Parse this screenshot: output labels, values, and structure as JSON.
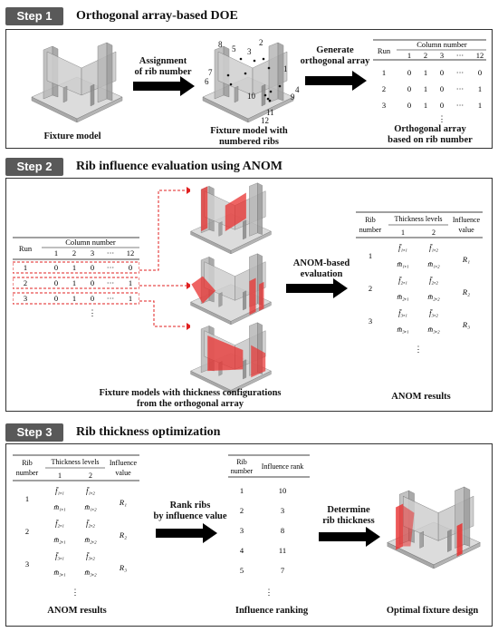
{
  "step1": {
    "badge": "Step 1",
    "title": "Orthogonal array-based DOE",
    "fixture_label": "Fixture model",
    "arrow1_label": [
      "Assignment",
      "of rib number"
    ],
    "numbered_label": [
      "Fixture model with",
      "numbered ribs"
    ],
    "rib_numbers": [
      "1",
      "2",
      "3",
      "4",
      "5",
      "6",
      "7",
      "8",
      "9",
      "10",
      "11",
      "12"
    ],
    "arrow2_label": [
      "Generate",
      "orthogonal array"
    ],
    "oa_caption": [
      "Orthogonal array",
      "based on rib number"
    ],
    "oa_table": {
      "run_header": "Run",
      "column_header": "Column number",
      "columns": [
        "1",
        "2",
        "3",
        "···",
        "12"
      ],
      "rows": [
        {
          "run": "1",
          "cells": [
            "0",
            "1",
            "0",
            "···",
            "0"
          ]
        },
        {
          "run": "2",
          "cells": [
            "0",
            "1",
            "0",
            "···",
            "1"
          ]
        },
        {
          "run": "3",
          "cells": [
            "0",
            "1",
            "0",
            "···",
            "1"
          ]
        }
      ],
      "more": "⋮"
    }
  },
  "step2": {
    "badge": "Step 2",
    "title": "Rib influence evaluation using ANOM",
    "oa_table": {
      "run_header": "Run",
      "column_header": "Column number",
      "columns": [
        "1",
        "2",
        "3",
        "···",
        "12"
      ],
      "rows": [
        {
          "run": "1",
          "cells": [
            "0",
            "1",
            "0",
            "···",
            "0"
          ]
        },
        {
          "run": "2",
          "cells": [
            "0",
            "1",
            "0",
            "···",
            "1"
          ]
        },
        {
          "run": "3",
          "cells": [
            "0",
            "1",
            "0",
            "···",
            "1"
          ]
        }
      ],
      "more": "⋮"
    },
    "models_caption": [
      "Fixture models with thickness configurations",
      "from the orthogonal array"
    ],
    "arrow_label": [
      "ANOM-based",
      "evaluation"
    ],
    "anom_caption": "ANOM results",
    "anom_table": {
      "rib_header": [
        "Rib",
        "number"
      ],
      "thick_header": "Thickness levels",
      "level_cols": [
        "1",
        "2"
      ],
      "infl_header": [
        "Influence",
        "value"
      ],
      "rows": [
        {
          "rib": "1",
          "f1": "f̄₁,₁",
          "f2": "f̄₁,₂",
          "m1": "m̄₁,₁",
          "m2": "m̄₁,₂",
          "infl": "R₁"
        },
        {
          "rib": "2",
          "f1": "f̄₂,₁",
          "f2": "f̄₂,₂",
          "m1": "m̄₂,₁",
          "m2": "m̄₂,₂",
          "infl": "R₂"
        },
        {
          "rib": "3",
          "f1": "f̄₃,₁",
          "f2": "f̄₃,₂",
          "m1": "m̄₃,₁",
          "m2": "m̄₃,₂",
          "infl": "R₃"
        }
      ],
      "more": "⋮"
    }
  },
  "step3": {
    "badge": "Step 3",
    "title": "Rib thickness optimization",
    "anom_caption": "ANOM results",
    "anom_table": {
      "rib_header": [
        "Rib",
        "number"
      ],
      "thick_header": "Thickness levels",
      "level_cols": [
        "1",
        "2"
      ],
      "infl_header": [
        "Influence",
        "value"
      ],
      "rows": [
        {
          "rib": "1",
          "f1": "f̄₁,₁",
          "f2": "f̄₁,₂",
          "m1": "m̄₁,₁",
          "m2": "m̄₁,₂",
          "infl": "R₁"
        },
        {
          "rib": "2",
          "f1": "f̄₂,₁",
          "f2": "f̄₂,₂",
          "m1": "m̄₂,₁",
          "m2": "m̄₂,₂",
          "infl": "R₂"
        },
        {
          "rib": "3",
          "f1": "f̄₃,₁",
          "f2": "f̄₃,₂",
          "m1": "m̄₃,₁",
          "m2": "m̄₃,₂",
          "infl": "R₃"
        }
      ],
      "more": "⋮"
    },
    "arrow1_label": [
      "Rank ribs",
      "by influence value"
    ],
    "rank_caption": "Influence ranking",
    "rank_table": {
      "rib_header": [
        "Rib",
        "number"
      ],
      "rank_header": "Influence rank",
      "rows": [
        {
          "rib": "1",
          "rank": "10"
        },
        {
          "rib": "2",
          "rank": "3"
        },
        {
          "rib": "3",
          "rank": "8"
        },
        {
          "rib": "4",
          "rank": "11"
        },
        {
          "rib": "5",
          "rank": "7"
        }
      ],
      "more": "⋮"
    },
    "arrow2_label": [
      "Determine",
      "rib thickness"
    ],
    "design_caption": "Optimal fixture design"
  },
  "colors": {
    "badge": "#595959",
    "rib_red": "#e8302f",
    "dash_red": "#e02020",
    "fixture_gray": "#b8b8b8"
  }
}
